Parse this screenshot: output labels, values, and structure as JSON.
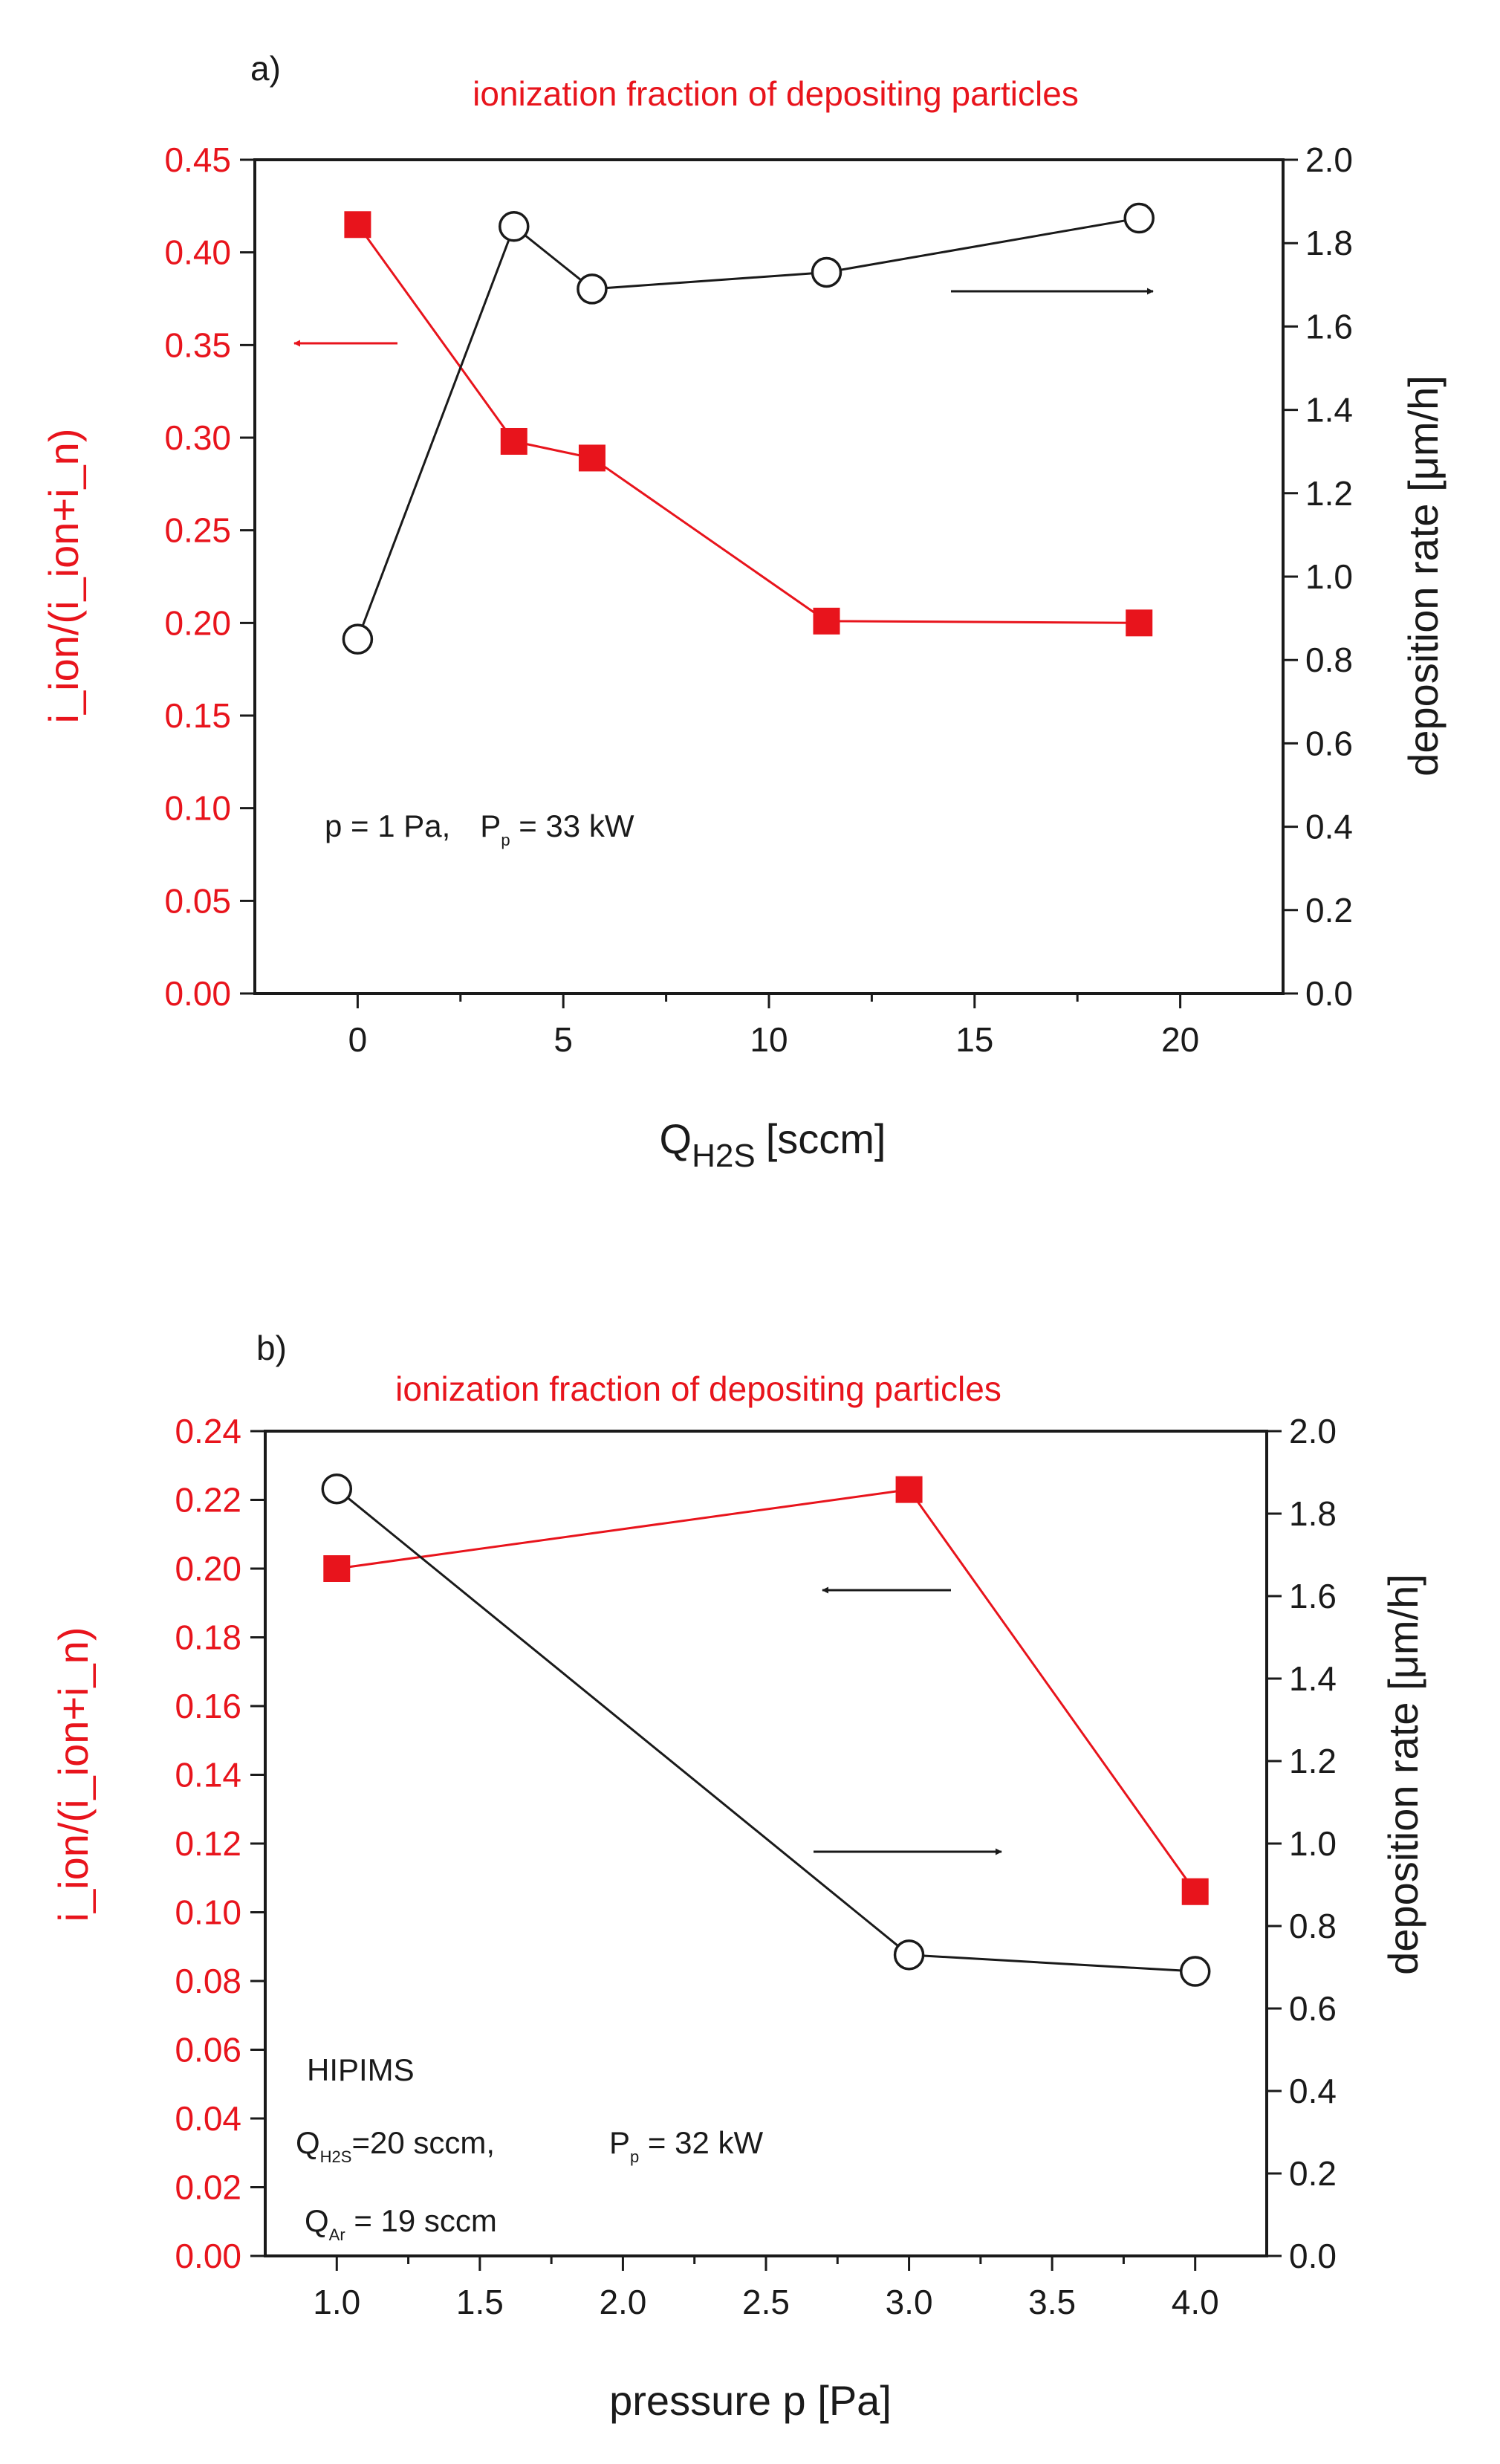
{
  "chart_data": [
    {
      "type": "line",
      "panel_label": "a)",
      "title": "ionization fraction of depositing particles",
      "xlabel": "Q",
      "xlabel_sub": "H2S",
      "xlabel_unit": "[sccm]",
      "xlim": [
        -2.5,
        22.5
      ],
      "x_ticks": [
        0,
        5,
        10,
        15,
        20
      ],
      "x_tick_labels": [
        "0",
        "5",
        "10",
        "15",
        "20"
      ],
      "ylabel_left": "i_ion/(i_ion+i_n)",
      "ylim_left": [
        0.0,
        0.45
      ],
      "y_left_ticks": [
        0.0,
        0.05,
        0.1,
        0.15,
        0.2,
        0.25,
        0.3,
        0.35,
        0.4,
        0.45
      ],
      "y_left_tick_labels": [
        "0.00",
        "0.05",
        "0.10",
        "0.15",
        "0.20",
        "0.25",
        "0.30",
        "0.35",
        "0.40",
        "0.45"
      ],
      "ylabel_right": "deposition  rate  [μm/h]",
      "ylim_right": [
        0.0,
        2.0
      ],
      "y_right_ticks": [
        0.0,
        0.2,
        0.4,
        0.6,
        0.8,
        1.0,
        1.2,
        1.4,
        1.6,
        1.8,
        2.0
      ],
      "y_right_tick_labels": [
        "0.0",
        "0.2",
        "0.4",
        "0.6",
        "0.8",
        "1.0",
        "1.2",
        "1.4",
        "1.6",
        "1.8",
        "2.0"
      ],
      "series": [
        {
          "name": "ionization fraction",
          "axis": "left",
          "color": "#e8141c",
          "marker": "square-filled",
          "x": [
            0,
            3.8,
            5.7,
            11.4,
            19
          ],
          "values": [
            0.415,
            0.298,
            0.289,
            0.201,
            0.2
          ]
        },
        {
          "name": "deposition rate",
          "axis": "right",
          "color": "#1a1a1a",
          "marker": "circle-open",
          "x": [
            0,
            3.8,
            5.7,
            11.4,
            19
          ],
          "values": [
            0.85,
            1.84,
            1.69,
            1.73,
            1.86
          ]
        }
      ],
      "annotations": {
        "p_text": "p = 1 Pa,",
        "power_main": "P",
        "power_sub": "p",
        "power_value": " = 33 kW"
      }
    },
    {
      "type": "line",
      "panel_label": "b)",
      "title": "ionization fraction of depositing particles",
      "xlabel": "pressure   p [Pa]",
      "xlim": [
        0.75,
        4.25
      ],
      "x_ticks": [
        1.0,
        1.5,
        2.0,
        2.5,
        3.0,
        3.5,
        4.0
      ],
      "x_tick_labels": [
        "1.0",
        "1.5",
        "2.0",
        "2.5",
        "3.0",
        "3.5",
        "4.0"
      ],
      "ylabel_left": "i_ion/(i_ion+i_n)",
      "ylim_left": [
        0.0,
        0.24
      ],
      "y_left_ticks": [
        0.0,
        0.02,
        0.04,
        0.06,
        0.08,
        0.1,
        0.12,
        0.14,
        0.16,
        0.18,
        0.2,
        0.22,
        0.24
      ],
      "y_left_tick_labels": [
        "0.00",
        "0.02",
        "0.04",
        "0.06",
        "0.08",
        "0.10",
        "0.12",
        "0.14",
        "0.16",
        "0.18",
        "0.20",
        "0.22",
        "0.24"
      ],
      "ylabel_right": "deposition  rate  [μm/h]",
      "ylim_right": [
        0.0,
        2.0
      ],
      "y_right_ticks": [
        0.0,
        0.2,
        0.4,
        0.6,
        0.8,
        1.0,
        1.2,
        1.4,
        1.6,
        1.8,
        2.0
      ],
      "y_right_tick_labels": [
        "0.0",
        "0.2",
        "0.4",
        "0.6",
        "0.8",
        "1.0",
        "1.2",
        "1.4",
        "1.6",
        "1.8",
        "2.0"
      ],
      "series": [
        {
          "name": "ionization fraction",
          "axis": "left",
          "color": "#e8141c",
          "marker": "square-filled",
          "x": [
            1.0,
            3.0,
            4.0
          ],
          "values": [
            0.2,
            0.223,
            0.106
          ]
        },
        {
          "name": "deposition rate",
          "axis": "right",
          "color": "#1a1a1a",
          "marker": "circle-open",
          "x": [
            1.0,
            3.0,
            4.0
          ],
          "values": [
            1.86,
            0.73,
            0.69
          ]
        }
      ],
      "annotations": {
        "mode": "HIPIMS",
        "q_h2s_main": "Q",
        "q_h2s_sub": "H2S",
        "q_h2s_value": "=20 sccm,",
        "power_main": "P",
        "power_sub": "p",
        "power_value": " = 32 kW",
        "q_ar_main": "Q",
        "q_ar_sub": "Ar",
        "q_ar_value": " = 19 sccm"
      }
    }
  ]
}
